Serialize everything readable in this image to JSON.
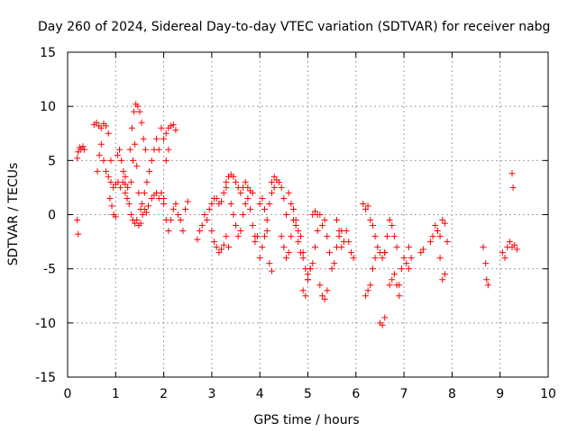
{
  "chart_data": {
    "type": "scatter",
    "title": "Day 260 of 2024, Sidereal Day-to-day VTEC variation (SDTVAR) for receiver nabg",
    "xlabel": "GPS time / hours",
    "ylabel": "SDTVAR / TECUs",
    "xlim": [
      0,
      10
    ],
    "ylim": [
      -15,
      15
    ],
    "xticks": [
      0,
      1,
      2,
      3,
      4,
      5,
      6,
      7,
      8,
      9,
      10
    ],
    "yticks": [
      -15,
      -10,
      -5,
      0,
      5,
      10,
      15
    ],
    "grid": true,
    "marker": "+",
    "color": "#ff0000",
    "segments": [
      {
        "name": "seg-a",
        "x": [
          0.2,
          0.22,
          0.25,
          0.28,
          0.32,
          0.35
        ],
        "y": [
          5.2,
          5.8,
          6.2,
          6.0,
          6.3,
          6.0
        ]
      },
      {
        "name": "seg-b",
        "x": [
          0.2,
          0.22
        ],
        "y": [
          -0.5,
          -1.8
        ]
      },
      {
        "name": "seg-c",
        "x": [
          0.55,
          0.6,
          0.65,
          0.7,
          0.75,
          0.8,
          0.85,
          0.9
        ],
        "y": [
          8.3,
          8.5,
          8.2,
          8.0,
          8.4,
          8.2,
          7.5,
          5.0
        ]
      },
      {
        "name": "seg-d",
        "x": [
          0.62,
          0.66,
          0.7,
          0.75,
          0.8,
          0.85,
          0.9,
          0.95,
          1.0,
          1.05,
          1.1,
          1.15,
          1.2
        ],
        "y": [
          4.0,
          5.5,
          6.5,
          5.0,
          4.0,
          3.5,
          3.0,
          2.5,
          2.8,
          3.0,
          2.5,
          3.0,
          2.8
        ]
      },
      {
        "name": "seg-e",
        "x": [
          0.88,
          0.92,
          0.96,
          1.0,
          1.04,
          1.08,
          1.12,
          1.16,
          1.2,
          1.25
        ],
        "y": [
          1.5,
          0.8,
          0.0,
          -0.2,
          5.5,
          6.0,
          5.0,
          4.0,
          3.5,
          2.5
        ]
      },
      {
        "name": "seg-f",
        "x": [
          1.2,
          1.24,
          1.28,
          1.32,
          1.36,
          1.4,
          1.44,
          1.48,
          1.52
        ],
        "y": [
          2.0,
          1.5,
          1.0,
          0.0,
          -0.5,
          -0.8,
          -0.5,
          -1.0,
          -0.8
        ]
      },
      {
        "name": "seg-g",
        "x": [
          1.3,
          1.34,
          1.38,
          1.42,
          1.46,
          1.5,
          1.54,
          1.58,
          1.62
        ],
        "y": [
          6.0,
          8.0,
          9.5,
          10.2,
          10.0,
          9.5,
          8.5,
          7.0,
          6.0
        ]
      },
      {
        "name": "seg-h",
        "x": [
          1.32,
          1.36,
          1.4,
          1.44,
          1.48,
          1.52,
          1.56,
          1.6,
          1.64,
          1.68
        ],
        "y": [
          3.0,
          5.0,
          6.5,
          4.5,
          2.0,
          0.5,
          0.0,
          0.5,
          0.2,
          0.8
        ]
      },
      {
        "name": "seg-i",
        "x": [
          1.55,
          1.6,
          1.65,
          1.7,
          1.75,
          1.8,
          1.85,
          1.9,
          1.95,
          2.0
        ],
        "y": [
          1.0,
          2.0,
          3.0,
          4.0,
          5.0,
          6.0,
          7.0,
          6.0,
          2.0,
          1.5
        ]
      },
      {
        "name": "seg-j",
        "x": [
          1.75,
          1.8,
          1.85,
          1.9,
          1.95,
          2.0,
          2.05,
          2.1
        ],
        "y": [
          1.5,
          1.8,
          2.0,
          1.5,
          8.0,
          7.0,
          5.0,
          6.0
        ]
      },
      {
        "name": "seg-k",
        "x": [
          2.05,
          2.1,
          2.15,
          2.2,
          2.25
        ],
        "y": [
          7.5,
          8.0,
          8.2,
          8.3,
          7.8
        ]
      },
      {
        "name": "seg-l",
        "x": [
          2.0,
          2.05,
          2.1,
          2.15,
          2.2,
          2.25,
          2.3,
          2.35,
          2.4,
          2.45,
          2.5
        ],
        "y": [
          1.0,
          -0.5,
          -1.5,
          -0.5,
          0.5,
          1.0,
          0.0,
          -0.5,
          -1.5,
          0.5,
          1.2
        ]
      },
      {
        "name": "seg-m",
        "x": [
          2.7,
          2.75,
          2.8,
          2.85,
          2.9,
          2.95,
          3.0,
          3.05,
          3.1,
          3.15,
          3.2,
          3.25,
          3.3
        ],
        "y": [
          -2.3,
          -1.5,
          -1.0,
          0.0,
          -0.5,
          0.5,
          1.0,
          1.5,
          1.5,
          1.0,
          1.2,
          2.0,
          2.5
        ]
      },
      {
        "name": "seg-n",
        "x": [
          3.0,
          3.05,
          3.1,
          3.15,
          3.2,
          3.25,
          3.3,
          3.35
        ],
        "y": [
          -1.5,
          -2.5,
          -3.0,
          -3.5,
          -3.2,
          -2.8,
          -2.0,
          -3.0
        ]
      },
      {
        "name": "seg-o",
        "x": [
          3.3,
          3.35,
          3.4,
          3.45,
          3.5,
          3.55,
          3.6,
          3.65,
          3.7,
          3.75,
          3.8,
          3.85
        ],
        "y": [
          3.0,
          3.5,
          3.7,
          3.5,
          3.0,
          2.5,
          2.0,
          2.5,
          3.0,
          2.5,
          2.2,
          2.0
        ]
      },
      {
        "name": "seg-p",
        "x": [
          3.4,
          3.45,
          3.5,
          3.55,
          3.6,
          3.65,
          3.7,
          3.75,
          3.8,
          3.85,
          3.9
        ],
        "y": [
          1.0,
          0.0,
          -1.0,
          -2.0,
          -1.5,
          0.0,
          1.0,
          1.5,
          0.5,
          -1.0,
          -2.0
        ]
      },
      {
        "name": "seg-q",
        "x": [
          3.9,
          3.95,
          4.0,
          4.05,
          4.1,
          4.15,
          4.2,
          4.25,
          4.3
        ],
        "y": [
          -2.5,
          -2.0,
          1.0,
          1.5,
          0.5,
          -0.5,
          1.0,
          2.0,
          2.5
        ]
      },
      {
        "name": "seg-r",
        "x": [
          4.0,
          4.05,
          4.1,
          4.15,
          4.2,
          4.25
        ],
        "y": [
          -4.0,
          -3.0,
          -2.0,
          -1.5,
          -4.5,
          -5.2
        ]
      },
      {
        "name": "seg-s",
        "x": [
          4.25,
          4.3,
          4.35,
          4.4,
          4.45,
          4.5,
          4.55
        ],
        "y": [
          3.0,
          3.5,
          3.2,
          3.0,
          2.5,
          1.5,
          0.0
        ]
      },
      {
        "name": "seg-t",
        "x": [
          4.45,
          4.5,
          4.55,
          4.6,
          4.65,
          4.7,
          4.75,
          4.8,
          4.85,
          4.9
        ],
        "y": [
          -2.0,
          -3.0,
          -4.0,
          -3.5,
          -2.0,
          -0.5,
          -1.0,
          -2.5,
          -3.5,
          -4.0
        ]
      },
      {
        "name": "seg-u",
        "x": [
          4.6,
          4.65,
          4.7,
          4.75,
          4.8,
          4.85,
          4.9,
          4.95,
          5.0
        ],
        "y": [
          2.0,
          1.0,
          0.5,
          -0.5,
          -1.5,
          -2.0,
          -3.5,
          -5.0,
          -6.0
        ]
      },
      {
        "name": "seg-v",
        "x": [
          4.9,
          4.95,
          5.0,
          5.05,
          5.1,
          5.15,
          5.2,
          5.25
        ],
        "y": [
          -7.0,
          -7.5,
          -6.0,
          -5.0,
          -4.5,
          -3.0,
          -1.5,
          0.0
        ]
      },
      {
        "name": "seg-w",
        "x": [
          5.0,
          5.05,
          5.1,
          5.15,
          5.2,
          5.25,
          5.3,
          5.35,
          5.4
        ],
        "y": [
          -5.5,
          -5.0,
          0.0,
          0.3,
          0.0,
          -6.5,
          -7.5,
          -7.8,
          -7.0
        ]
      },
      {
        "name": "seg-x",
        "x": [
          5.3,
          5.35,
          5.4,
          5.45,
          5.5,
          5.55,
          5.6,
          5.65,
          5.7
        ],
        "y": [
          -1.0,
          -0.5,
          -2.0,
          -3.5,
          -5.0,
          -4.5,
          -3.0,
          -2.0,
          -1.5
        ]
      },
      {
        "name": "seg-y",
        "x": [
          5.6,
          5.65,
          5.7,
          5.75,
          5.8,
          5.85,
          5.9,
          5.95
        ],
        "y": [
          -0.5,
          -1.5,
          -3.0,
          -2.5,
          -1.5,
          -2.5,
          -3.5,
          -4.0
        ]
      },
      {
        "name": "seg-z",
        "x": [
          6.15,
          6.2,
          6.25
        ],
        "y": [
          1.0,
          0.5,
          0.8
        ]
      },
      {
        "name": "seg-aa",
        "x": [
          6.2,
          6.25,
          6.3,
          6.35,
          6.4
        ],
        "y": [
          -7.5,
          -7.0,
          -6.5,
          -5.0,
          -4.0
        ]
      },
      {
        "name": "seg-ab",
        "x": [
          6.3,
          6.35,
          6.4,
          6.45,
          6.5,
          6.55,
          6.6
        ],
        "y": [
          -0.5,
          -1.0,
          -2.0,
          -3.0,
          -3.5,
          -4.0,
          -3.5
        ]
      },
      {
        "name": "seg-ac",
        "x": [
          6.5,
          6.55,
          6.6
        ],
        "y": [
          -10.0,
          -10.2,
          -9.5
        ]
      },
      {
        "name": "seg-ad",
        "x": [
          6.6,
          6.65,
          6.7,
          6.75,
          6.8,
          6.85,
          6.9
        ],
        "y": [
          -3.5,
          -2.0,
          -0.5,
          -1.0,
          -2.0,
          -3.0,
          -6.5
        ]
      },
      {
        "name": "seg-ae",
        "x": [
          6.7,
          6.75,
          6.8,
          6.85,
          6.9,
          6.95,
          7.0,
          7.05,
          7.1
        ],
        "y": [
          -6.5,
          -6.0,
          -5.5,
          -6.5,
          -7.5,
          -5.0,
          -4.0,
          -4.5,
          -5.0
        ]
      },
      {
        "name": "seg-af",
        "x": [
          7.1,
          7.15
        ],
        "y": [
          -3.0,
          -4.0
        ]
      },
      {
        "name": "seg-ag",
        "x": [
          7.35,
          7.4
        ],
        "y": [
          -3.5,
          -3.2
        ]
      },
      {
        "name": "seg-ah",
        "x": [
          7.55,
          7.6,
          7.65,
          7.7,
          7.75,
          7.8,
          7.85
        ],
        "y": [
          -2.5,
          -2.0,
          -1.0,
          -1.5,
          -4.0,
          -6.0,
          -5.5
        ]
      },
      {
        "name": "seg-ai",
        "x": [
          7.7,
          7.75,
          7.8,
          7.85,
          7.9
        ],
        "y": [
          -1.5,
          -2.0,
          -0.5,
          -0.8,
          -2.5
        ]
      },
      {
        "name": "seg-aj",
        "x": [
          8.65,
          8.7,
          8.72,
          8.75
        ],
        "y": [
          -3.0,
          -4.5,
          -6.0,
          -6.5
        ]
      },
      {
        "name": "seg-ak",
        "x": [
          9.05,
          9.1,
          9.15,
          9.2,
          9.25,
          9.3,
          9.35
        ],
        "y": [
          -3.5,
          -4.0,
          -3.0,
          -2.5,
          -3.0,
          -2.8,
          -3.2
        ]
      },
      {
        "name": "seg-al",
        "x": [
          9.25,
          9.27
        ],
        "y": [
          3.8,
          2.5
        ]
      }
    ]
  }
}
